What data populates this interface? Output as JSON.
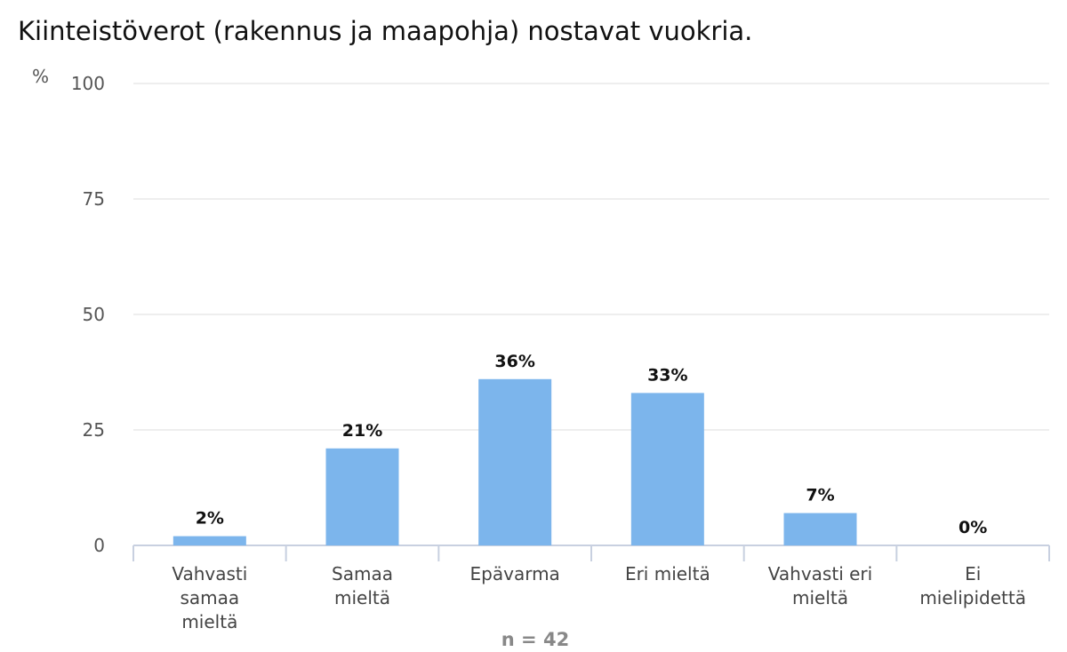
{
  "chart_data": {
    "type": "bar",
    "title": "Kiinteistöverot (rakennus ja maapohja) nostavat vuokria.",
    "ylabel": "%",
    "xlabel": "",
    "ylim": [
      0,
      100
    ],
    "yticks": [
      0,
      25,
      50,
      75,
      100
    ],
    "grid": true,
    "categories": [
      [
        "Vahvasti",
        "samaa",
        "mieltä"
      ],
      [
        "Samaa",
        "mieltä"
      ],
      [
        "Epävarma"
      ],
      [
        "Eri mieltä"
      ],
      [
        "Vahvasti eri",
        "mieltä"
      ],
      [
        "Ei",
        "mielipidettä"
      ]
    ],
    "values": [
      2,
      21,
      36,
      33,
      7,
      0
    ],
    "data_labels": [
      "2%",
      "21%",
      "36%",
      "33%",
      "7%",
      "0%"
    ],
    "bar_color": "#7cb5ec",
    "footnote": "n = 42"
  }
}
